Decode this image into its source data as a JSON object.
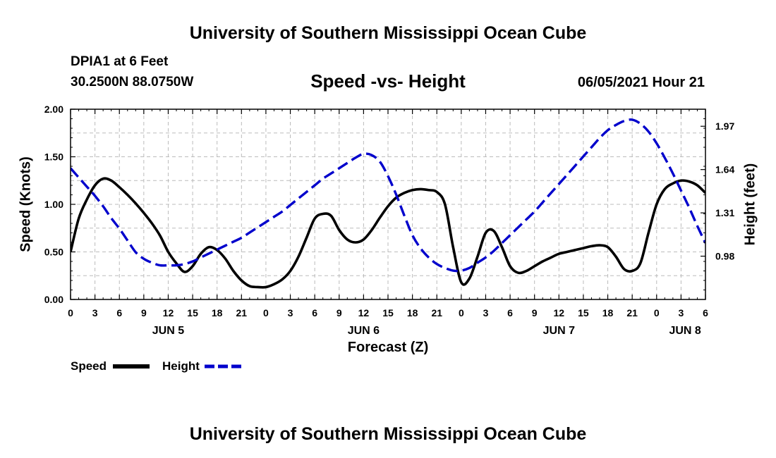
{
  "header": {
    "title_top": "University of Southern Mississippi Ocean Cube",
    "station": "DPIA1 at 6 Feet",
    "coords": "30.2500N  88.0750W",
    "chart_title": "Speed -vs- Height",
    "timestamp": "06/05/2021 Hour 21",
    "title_bottom": "University of Southern Mississippi Ocean Cube"
  },
  "colors": {
    "speed": "#000000",
    "height": "#0000cc",
    "grid": "#bbbbbb"
  },
  "legend": {
    "speed_label": "Speed",
    "height_label": "Height"
  },
  "chart_data": {
    "type": "line",
    "title": "Speed -vs- Height",
    "xlabel": "Forecast (Z)",
    "ylabel": "Speed (Knots)",
    "y2label": "Height (feet)",
    "xlim": [
      0,
      78
    ],
    "ylim": [
      0,
      2.0
    ],
    "y2lim": [
      0.65,
      2.1
    ],
    "grid": true,
    "x_ticks": [
      {
        "x": 0,
        "label": "0"
      },
      {
        "x": 3,
        "label": "3"
      },
      {
        "x": 6,
        "label": "6"
      },
      {
        "x": 9,
        "label": "9"
      },
      {
        "x": 12,
        "label": "12"
      },
      {
        "x": 15,
        "label": "15"
      },
      {
        "x": 18,
        "label": "18"
      },
      {
        "x": 21,
        "label": "21"
      },
      {
        "x": 24,
        "label": "0"
      },
      {
        "x": 27,
        "label": "3"
      },
      {
        "x": 30,
        "label": "6"
      },
      {
        "x": 33,
        "label": "9"
      },
      {
        "x": 36,
        "label": "12"
      },
      {
        "x": 39,
        "label": "15"
      },
      {
        "x": 42,
        "label": "18"
      },
      {
        "x": 45,
        "label": "21"
      },
      {
        "x": 48,
        "label": "0"
      },
      {
        "x": 51,
        "label": "3"
      },
      {
        "x": 54,
        "label": "6"
      },
      {
        "x": 57,
        "label": "9"
      },
      {
        "x": 60,
        "label": "12"
      },
      {
        "x": 63,
        "label": "15"
      },
      {
        "x": 66,
        "label": "18"
      },
      {
        "x": 69,
        "label": "21"
      },
      {
        "x": 72,
        "label": "0"
      },
      {
        "x": 75,
        "label": "3"
      },
      {
        "x": 78,
        "label": "6"
      }
    ],
    "day_labels": [
      {
        "x": 12,
        "label": "JUN 5"
      },
      {
        "x": 36,
        "label": "JUN 6"
      },
      {
        "x": 60,
        "label": "JUN 7"
      },
      {
        "x": 75.5,
        "label": "JUN 8"
      }
    ],
    "y_ticks": [
      {
        "v": 0.0,
        "label": "0.00"
      },
      {
        "v": 0.5,
        "label": "0.50"
      },
      {
        "v": 1.0,
        "label": "1.00"
      },
      {
        "v": 1.5,
        "label": "1.50"
      },
      {
        "v": 2.0,
        "label": "2.00"
      }
    ],
    "y2_ticks": [
      {
        "v": 0.98,
        "label": "0.98"
      },
      {
        "v": 1.31,
        "label": "1.31"
      },
      {
        "v": 1.64,
        "label": "1.64"
      },
      {
        "v": 1.97,
        "label": "1.97"
      }
    ],
    "series": [
      {
        "name": "Speed",
        "axis": "left",
        "x": [
          0,
          1,
          2,
          3,
          4,
          5,
          6,
          7,
          8,
          9,
          10,
          11,
          12,
          13,
          14,
          15,
          16,
          17,
          18,
          19,
          20,
          21,
          22,
          23,
          24,
          25,
          26,
          27,
          28,
          29,
          30,
          31,
          32,
          33,
          34,
          35,
          36,
          37,
          38,
          39,
          40,
          41,
          42,
          43,
          44,
          45,
          46,
          47,
          48,
          49,
          50,
          51,
          52,
          53,
          54,
          55,
          56,
          57,
          58,
          59,
          60,
          61,
          62,
          63,
          64,
          65,
          66,
          67,
          68,
          69,
          70,
          71,
          72,
          73,
          74,
          75,
          76,
          77,
          78
        ],
        "values": [
          0.5,
          0.85,
          1.05,
          1.2,
          1.27,
          1.25,
          1.18,
          1.1,
          1.01,
          0.91,
          0.8,
          0.67,
          0.5,
          0.38,
          0.29,
          0.35,
          0.48,
          0.55,
          0.52,
          0.43,
          0.3,
          0.2,
          0.14,
          0.13,
          0.13,
          0.16,
          0.21,
          0.3,
          0.45,
          0.65,
          0.85,
          0.9,
          0.88,
          0.73,
          0.63,
          0.6,
          0.63,
          0.73,
          0.86,
          0.98,
          1.07,
          1.12,
          1.15,
          1.16,
          1.15,
          1.13,
          1.0,
          0.55,
          0.18,
          0.22,
          0.45,
          0.7,
          0.72,
          0.55,
          0.35,
          0.28,
          0.3,
          0.35,
          0.4,
          0.44,
          0.48,
          0.5,
          0.52,
          0.54,
          0.56,
          0.57,
          0.55,
          0.45,
          0.32,
          0.3,
          0.38,
          0.7,
          1.0,
          1.16,
          1.22,
          1.25,
          1.24,
          1.2,
          1.12
        ]
      },
      {
        "name": "Height",
        "axis": "right",
        "x": [
          0,
          1,
          2,
          3,
          4,
          5,
          6,
          7,
          8,
          9,
          10,
          11,
          12,
          13,
          14,
          15,
          16,
          17,
          18,
          19,
          20,
          21,
          22,
          23,
          24,
          25,
          26,
          27,
          28,
          29,
          30,
          31,
          32,
          33,
          34,
          35,
          36,
          37,
          38,
          39,
          40,
          41,
          42,
          43,
          44,
          45,
          46,
          47,
          48,
          49,
          50,
          51,
          52,
          53,
          54,
          55,
          56,
          57,
          58,
          59,
          60,
          61,
          62,
          63,
          64,
          65,
          66,
          67,
          68,
          69,
          70,
          71,
          72,
          73,
          74,
          75,
          76,
          77,
          78
        ],
        "values": [
          1.65,
          1.58,
          1.51,
          1.44,
          1.36,
          1.27,
          1.19,
          1.1,
          1.01,
          0.96,
          0.93,
          0.91,
          0.91,
          0.91,
          0.92,
          0.94,
          0.97,
          1.0,
          1.03,
          1.06,
          1.09,
          1.12,
          1.16,
          1.2,
          1.24,
          1.28,
          1.32,
          1.37,
          1.42,
          1.47,
          1.52,
          1.57,
          1.61,
          1.65,
          1.69,
          1.73,
          1.76,
          1.75,
          1.7,
          1.59,
          1.45,
          1.29,
          1.14,
          1.04,
          0.97,
          0.92,
          0.89,
          0.87,
          0.87,
          0.89,
          0.93,
          0.97,
          1.02,
          1.08,
          1.14,
          1.2,
          1.26,
          1.32,
          1.39,
          1.46,
          1.53,
          1.6,
          1.67,
          1.74,
          1.81,
          1.88,
          1.94,
          1.98,
          2.01,
          2.02,
          1.99,
          1.93,
          1.84,
          1.73,
          1.61,
          1.48,
          1.35,
          1.21,
          1.08
        ]
      }
    ]
  }
}
